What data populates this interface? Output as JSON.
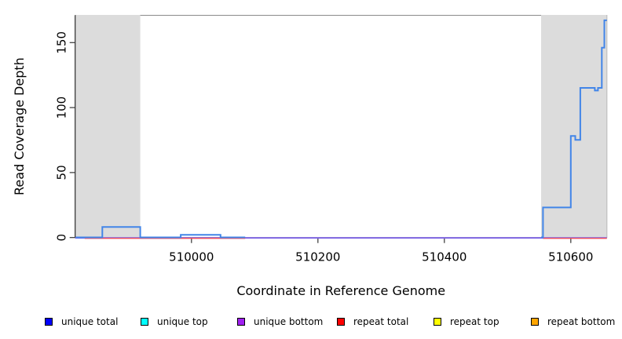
{
  "chart_data": {
    "type": "line",
    "subtype": "step-coverage",
    "title": "",
    "xlabel": "Coordinate in Reference Genome",
    "ylabel": "Read Coverage Depth",
    "xlim": [
      509816,
      510657
    ],
    "ylim": [
      0,
      171
    ],
    "x_ticks": [
      510000,
      510200,
      510400,
      510600
    ],
    "y_ticks": [
      0,
      50,
      100,
      150
    ],
    "grid": false,
    "shaded_regions": [
      {
        "name": "repeat-region-left",
        "x0": 509817,
        "x1": 509919,
        "color": "#dcdcdc"
      },
      {
        "name": "repeat-region-right",
        "x0": 510553,
        "x1": 510657,
        "color": "#dcdcdc"
      }
    ],
    "series": [
      {
        "name": "unique bottom",
        "color": "#7d62e8",
        "segments": [
          [
            [
              509816,
              0
            ],
            [
              510657,
              0
            ]
          ]
        ]
      },
      {
        "name": "repeat total",
        "color": "#ef4f5c",
        "segments": [
          [
            [
              509831,
              0
            ],
            [
              510085,
              0
            ]
          ],
          [
            [
              510556,
              0
            ],
            [
              510657,
              0
            ]
          ]
        ]
      },
      {
        "name": "unique total",
        "color": "#4285e8",
        "segments": [
          [
            [
              509817,
              0
            ],
            [
              509859,
              0
            ],
            [
              509859,
              8
            ],
            [
              509919,
              8
            ],
            [
              509919,
              0
            ],
            [
              509983,
              0
            ],
            [
              509983,
              2
            ],
            [
              510046,
              2
            ],
            [
              510046,
              0
            ],
            [
              510085,
              0
            ]
          ],
          [
            [
              510553,
              0
            ],
            [
              510556,
              0
            ],
            [
              510556,
              23
            ],
            [
              510600,
              23
            ],
            [
              510600,
              78
            ],
            [
              510607,
              78
            ],
            [
              510607,
              75
            ],
            [
              510615,
              75
            ],
            [
              510615,
              115
            ],
            [
              510638,
              115
            ],
            [
              510638,
              113
            ],
            [
              510643,
              113
            ],
            [
              510643,
              115
            ],
            [
              510649,
              115
            ],
            [
              510649,
              146
            ],
            [
              510653,
              146
            ],
            [
              510653,
              167
            ],
            [
              510657,
              167
            ]
          ]
        ]
      }
    ],
    "legend": {
      "position": "bottom",
      "items": [
        {
          "label": "unique total",
          "color": "#0000ff"
        },
        {
          "label": "unique top",
          "color": "#00ffff"
        },
        {
          "label": "unique bottom",
          "color": "#a020f0"
        },
        {
          "label": "repeat total",
          "color": "#ff0000"
        },
        {
          "label": "repeat top",
          "color": "#ffff00"
        },
        {
          "label": "repeat bottom",
          "color": "#ffa500"
        }
      ]
    }
  }
}
